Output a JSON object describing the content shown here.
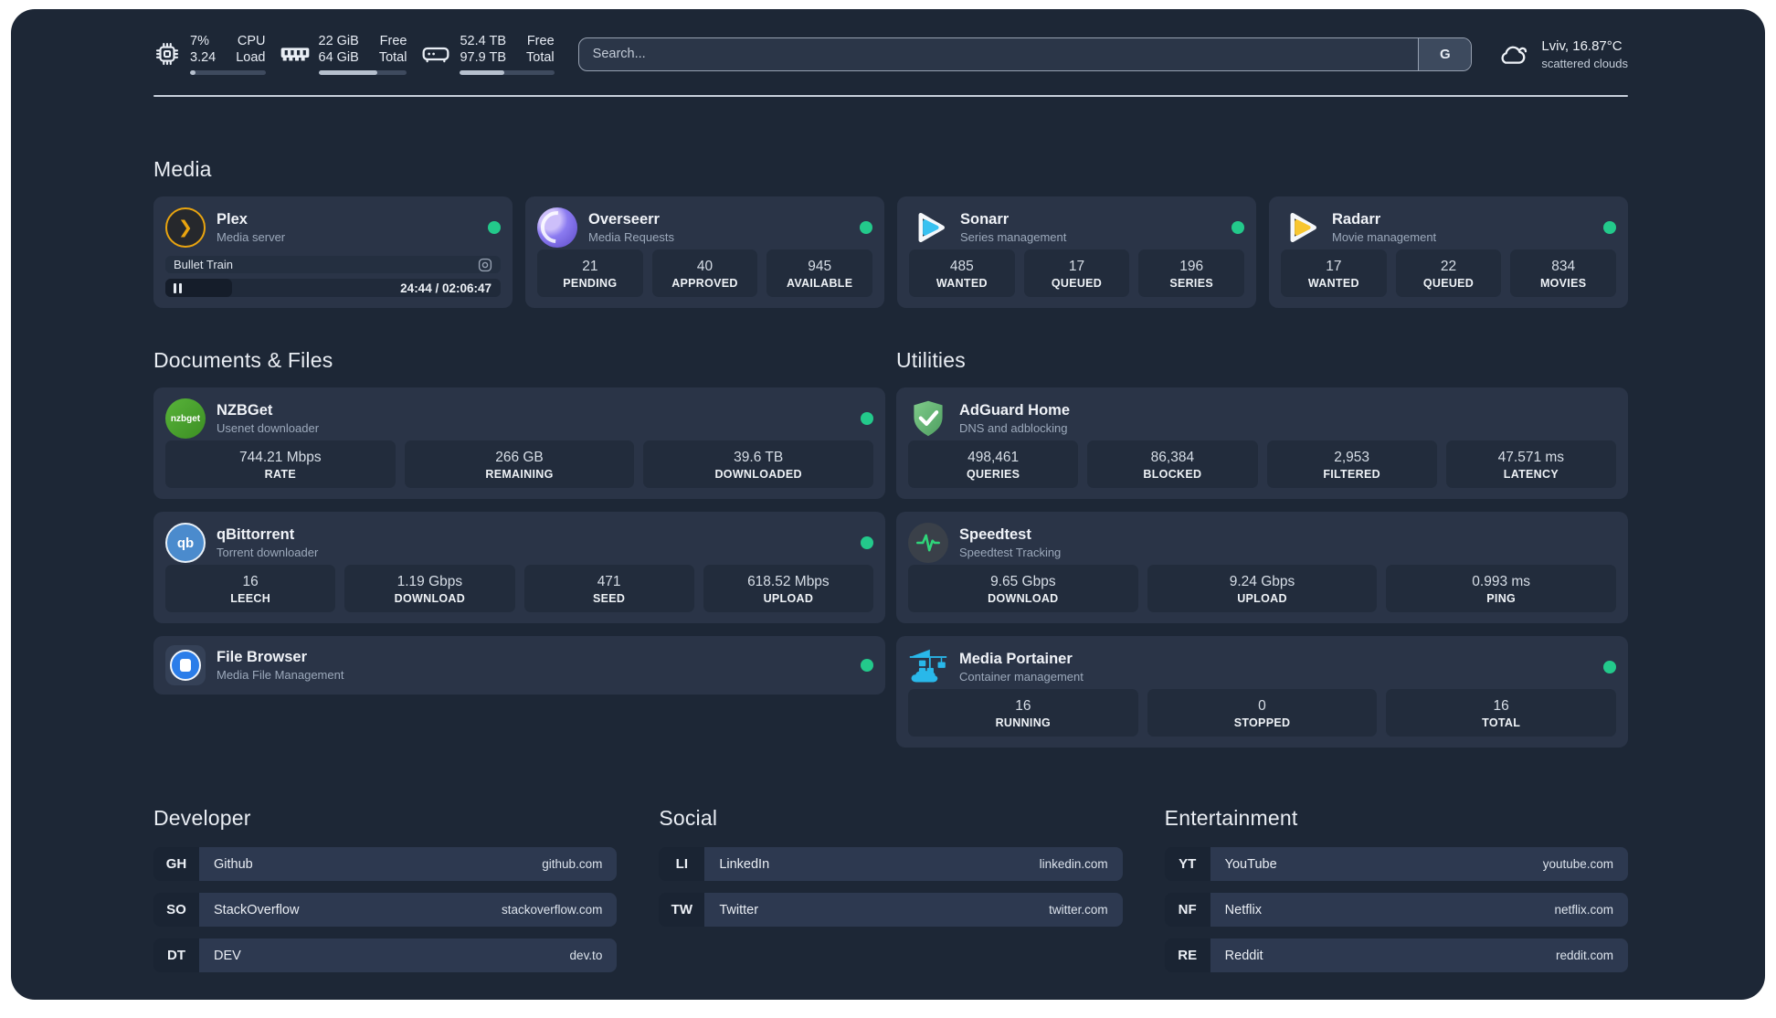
{
  "colors": {
    "status_online": "#23c98b",
    "plex_gold": "#e9a40f",
    "sonarr_blue": "#38c1f1",
    "radarr_yellow": "#f8c630",
    "nzbget_green": "#4aa52e",
    "qbittorrent_blue": "#4b8bcd",
    "filebrowser_blue": "#2b7de9",
    "adguard_green": "#5aa868",
    "speedtest_green": "#2fd57a",
    "portainer_blue": "#29b8ea"
  },
  "topbar": {
    "cpu": {
      "value_top": "7%",
      "value_bottom": "3.24",
      "label_top": "CPU",
      "label_bottom": "Load",
      "progress_pct": 7
    },
    "memory": {
      "value_top": "22 GiB",
      "value_bottom": "64 GiB",
      "label_top": "Free",
      "label_bottom": "Total",
      "progress_pct": 66
    },
    "disk": {
      "value_top": "52.4 TB",
      "value_bottom": "97.9 TB",
      "label_top": "Free",
      "label_bottom": "Total",
      "progress_pct": 47
    },
    "search": {
      "placeholder": "Search...",
      "engine_label": "G"
    },
    "weather": {
      "location_temperature": "Lviv, 16.87°C",
      "condition": "scattered clouds"
    }
  },
  "sections": {
    "media": {
      "title": "Media",
      "plex": {
        "name": "Plex",
        "description": "Media server",
        "status": "online",
        "now_playing": {
          "title": "Bullet Train",
          "time": "24:44 / 02:06:47",
          "progress_pct": 20
        }
      },
      "overseerr": {
        "name": "Overseerr",
        "description": "Media Requests",
        "status": "online",
        "stats": [
          {
            "value": "21",
            "label": "PENDING"
          },
          {
            "value": "40",
            "label": "APPROVED"
          },
          {
            "value": "945",
            "label": "AVAILABLE"
          }
        ]
      },
      "sonarr": {
        "name": "Sonarr",
        "description": "Series management",
        "status": "online",
        "stats": [
          {
            "value": "485",
            "label": "WANTED"
          },
          {
            "value": "17",
            "label": "QUEUED"
          },
          {
            "value": "196",
            "label": "SERIES"
          }
        ]
      },
      "radarr": {
        "name": "Radarr",
        "description": "Movie management",
        "status": "online",
        "stats": [
          {
            "value": "17",
            "label": "WANTED"
          },
          {
            "value": "22",
            "label": "QUEUED"
          },
          {
            "value": "834",
            "label": "MOVIES"
          }
        ]
      }
    },
    "documents": {
      "title": "Documents & Files",
      "nzbget": {
        "name": "NZBGet",
        "description": "Usenet downloader",
        "status": "online",
        "icon_text": "nzbget",
        "stats": [
          {
            "value": "744.21 Mbps",
            "label": "RATE"
          },
          {
            "value": "266 GB",
            "label": "REMAINING"
          },
          {
            "value": "39.6 TB",
            "label": "DOWNLOADED"
          }
        ]
      },
      "qbittorrent": {
        "name": "qBittorrent",
        "description": "Torrent downloader",
        "status": "online",
        "icon_text": "qb",
        "stats": [
          {
            "value": "16",
            "label": "LEECH"
          },
          {
            "value": "1.19 Gbps",
            "label": "DOWNLOAD"
          },
          {
            "value": "471",
            "label": "SEED"
          },
          {
            "value": "618.52 Mbps",
            "label": "UPLOAD"
          }
        ]
      },
      "filebrowser": {
        "name": "File Browser",
        "description": "Media File Management",
        "status": "online"
      }
    },
    "utilities": {
      "title": "Utilities",
      "adguard": {
        "name": "AdGuard Home",
        "description": "DNS and adblocking",
        "stats": [
          {
            "value": "498,461",
            "label": "QUERIES"
          },
          {
            "value": "86,384",
            "label": "BLOCKED"
          },
          {
            "value": "2,953",
            "label": "FILTERED"
          },
          {
            "value": "47.571 ms",
            "label": "LATENCY"
          }
        ]
      },
      "speedtest": {
        "name": "Speedtest",
        "description": "Speedtest Tracking",
        "stats": [
          {
            "value": "9.65 Gbps",
            "label": "DOWNLOAD"
          },
          {
            "value": "9.24 Gbps",
            "label": "UPLOAD"
          },
          {
            "value": "0.993 ms",
            "label": "PING"
          }
        ]
      },
      "portainer": {
        "name": "Media Portainer",
        "description": "Container management",
        "status": "online",
        "stats": [
          {
            "value": "16",
            "label": "RUNNING"
          },
          {
            "value": "0",
            "label": "STOPPED"
          },
          {
            "value": "16",
            "label": "TOTAL"
          }
        ]
      }
    },
    "bookmarks": {
      "developer": {
        "title": "Developer",
        "items": [
          {
            "abbr": "GH",
            "name": "Github",
            "url": "github.com"
          },
          {
            "abbr": "SO",
            "name": "StackOverflow",
            "url": "stackoverflow.com"
          },
          {
            "abbr": "DT",
            "name": "DEV",
            "url": "dev.to"
          }
        ]
      },
      "social": {
        "title": "Social",
        "items": [
          {
            "abbr": "LI",
            "name": "LinkedIn",
            "url": "linkedin.com"
          },
          {
            "abbr": "TW",
            "name": "Twitter",
            "url": "twitter.com"
          }
        ]
      },
      "entertainment": {
        "title": "Entertainment",
        "items": [
          {
            "abbr": "YT",
            "name": "YouTube",
            "url": "youtube.com"
          },
          {
            "abbr": "NF",
            "name": "Netflix",
            "url": "netflix.com"
          },
          {
            "abbr": "RE",
            "name": "Reddit",
            "url": "reddit.com"
          }
        ]
      }
    }
  }
}
